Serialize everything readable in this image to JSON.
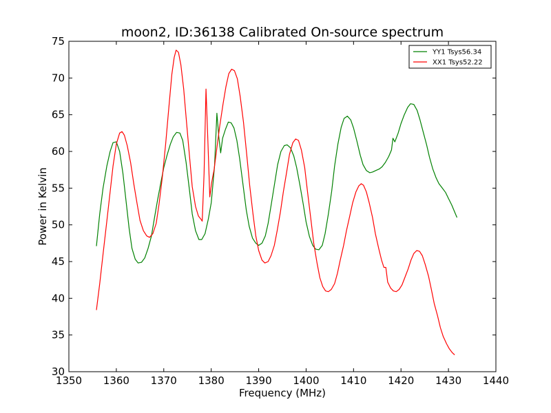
{
  "chart_data": {
    "type": "line",
    "title": "moon2, ID:36138 Calibrated On-source spectrum",
    "xlabel": "Frequency (MHz)",
    "ylabel": "Power in Kelvin",
    "xlim": [
      1350,
      1440
    ],
    "ylim": [
      30,
      75
    ],
    "xticks": [
      "1350",
      "1360",
      "1370",
      "1380",
      "1390",
      "1400",
      "1410",
      "1420",
      "1430",
      "1440"
    ],
    "yticks": [
      "30",
      "35",
      "40",
      "45",
      "50",
      "55",
      "60",
      "65",
      "70",
      "75"
    ],
    "grid": false,
    "legend_position": "top-right",
    "series": [
      {
        "name": "YY1 Tsys56.34",
        "color": "#008000",
        "points": [
          [
            1355.8,
            47.1
          ],
          [
            1356.5,
            51.5
          ],
          [
            1357.2,
            55.0
          ],
          [
            1358.0,
            58.0
          ],
          [
            1358.7,
            60.0
          ],
          [
            1359.3,
            61.2
          ],
          [
            1360.0,
            61.3
          ],
          [
            1360.7,
            60.0
          ],
          [
            1361.4,
            57.0
          ],
          [
            1362.0,
            53.5
          ],
          [
            1362.7,
            49.5
          ],
          [
            1363.3,
            46.8
          ],
          [
            1364.0,
            45.3
          ],
          [
            1364.6,
            44.8
          ],
          [
            1365.3,
            44.9
          ],
          [
            1366.0,
            45.5
          ],
          [
            1366.7,
            46.8
          ],
          [
            1367.4,
            48.5
          ],
          [
            1368.0,
            50.8
          ],
          [
            1368.7,
            53.4
          ],
          [
            1369.4,
            55.8
          ],
          [
            1370.0,
            57.8
          ],
          [
            1370.7,
            59.5
          ],
          [
            1371.4,
            61.0
          ],
          [
            1372.0,
            62.0
          ],
          [
            1372.7,
            62.6
          ],
          [
            1373.4,
            62.5
          ],
          [
            1374.0,
            61.5
          ],
          [
            1374.7,
            58.5
          ],
          [
            1375.4,
            54.8
          ],
          [
            1376.0,
            51.5
          ],
          [
            1376.7,
            49.2
          ],
          [
            1377.4,
            48.0
          ],
          [
            1378.0,
            48.0
          ],
          [
            1378.7,
            48.8
          ],
          [
            1379.4,
            50.8
          ],
          [
            1380.0,
            53.0
          ],
          [
            1380.7,
            58.0
          ],
          [
            1381.2,
            65.2
          ],
          [
            1381.6,
            62.0
          ],
          [
            1382.0,
            59.8
          ],
          [
            1382.4,
            61.8
          ],
          [
            1383.0,
            63.0
          ],
          [
            1383.6,
            64.0
          ],
          [
            1384.2,
            63.9
          ],
          [
            1384.8,
            63.2
          ],
          [
            1385.4,
            61.5
          ],
          [
            1386.0,
            59.0
          ],
          [
            1386.7,
            55.5
          ],
          [
            1387.4,
            52.0
          ],
          [
            1388.0,
            49.8
          ],
          [
            1388.7,
            48.2
          ],
          [
            1389.4,
            47.5
          ],
          [
            1390.0,
            47.2
          ],
          [
            1390.7,
            47.5
          ],
          [
            1391.4,
            48.5
          ],
          [
            1392.0,
            50.2
          ],
          [
            1392.7,
            53.0
          ],
          [
            1393.4,
            55.8
          ],
          [
            1394.0,
            58.2
          ],
          [
            1394.7,
            60.0
          ],
          [
            1395.4,
            60.8
          ],
          [
            1396.0,
            60.9
          ],
          [
            1396.7,
            60.5
          ],
          [
            1397.4,
            59.4
          ],
          [
            1398.0,
            57.8
          ],
          [
            1398.7,
            55.4
          ],
          [
            1399.4,
            52.8
          ],
          [
            1400.0,
            50.4
          ],
          [
            1400.7,
            48.4
          ],
          [
            1401.4,
            47.2
          ],
          [
            1402.0,
            46.7
          ],
          [
            1402.7,
            46.6
          ],
          [
            1403.4,
            47.2
          ],
          [
            1404.0,
            48.8
          ],
          [
            1404.7,
            51.5
          ],
          [
            1405.4,
            54.6
          ],
          [
            1406.0,
            58.0
          ],
          [
            1406.7,
            61.0
          ],
          [
            1407.4,
            63.3
          ],
          [
            1408.0,
            64.5
          ],
          [
            1408.7,
            64.8
          ],
          [
            1409.4,
            64.3
          ],
          [
            1410.0,
            63.2
          ],
          [
            1410.7,
            61.4
          ],
          [
            1411.4,
            59.5
          ],
          [
            1412.0,
            58.2
          ],
          [
            1412.7,
            57.4
          ],
          [
            1413.4,
            57.1
          ],
          [
            1414.0,
            57.2
          ],
          [
            1414.7,
            57.4
          ],
          [
            1415.4,
            57.6
          ],
          [
            1416.0,
            57.9
          ],
          [
            1416.7,
            58.5
          ],
          [
            1417.4,
            59.3
          ],
          [
            1418.0,
            60.2
          ],
          [
            1418.3,
            61.8
          ],
          [
            1418.7,
            61.3
          ],
          [
            1419.4,
            62.5
          ],
          [
            1420.0,
            63.8
          ],
          [
            1420.7,
            65.0
          ],
          [
            1421.4,
            66.0
          ],
          [
            1422.0,
            66.5
          ],
          [
            1422.7,
            66.4
          ],
          [
            1423.4,
            65.6
          ],
          [
            1424.0,
            64.3
          ],
          [
            1424.7,
            62.6
          ],
          [
            1425.4,
            60.9
          ],
          [
            1426.0,
            59.2
          ],
          [
            1426.7,
            57.6
          ],
          [
            1427.4,
            56.4
          ],
          [
            1428.0,
            55.6
          ],
          [
            1428.7,
            55.0
          ],
          [
            1429.4,
            54.4
          ],
          [
            1430.0,
            53.6
          ],
          [
            1430.7,
            52.7
          ],
          [
            1431.4,
            51.6
          ],
          [
            1431.8,
            51.0
          ]
        ]
      },
      {
        "name": "XX1 Tsys52.22",
        "color": "#ff0000",
        "points": [
          [
            1355.8,
            38.4
          ],
          [
            1356.5,
            42.0
          ],
          [
            1357.2,
            46.0
          ],
          [
            1358.0,
            50.5
          ],
          [
            1358.7,
            54.5
          ],
          [
            1359.3,
            58.0
          ],
          [
            1360.0,
            61.0
          ],
          [
            1360.7,
            62.5
          ],
          [
            1361.2,
            62.7
          ],
          [
            1361.7,
            62.2
          ],
          [
            1362.3,
            60.8
          ],
          [
            1363.0,
            58.5
          ],
          [
            1363.7,
            55.5
          ],
          [
            1364.4,
            52.8
          ],
          [
            1365.0,
            50.6
          ],
          [
            1365.7,
            49.2
          ],
          [
            1366.4,
            48.5
          ],
          [
            1367.0,
            48.3
          ],
          [
            1367.7,
            48.8
          ],
          [
            1368.4,
            50.2
          ],
          [
            1369.0,
            52.8
          ],
          [
            1369.7,
            56.5
          ],
          [
            1370.4,
            61.0
          ],
          [
            1371.0,
            65.5
          ],
          [
            1371.7,
            70.5
          ],
          [
            1372.2,
            72.8
          ],
          [
            1372.6,
            73.8
          ],
          [
            1373.1,
            73.5
          ],
          [
            1373.6,
            71.8
          ],
          [
            1374.2,
            68.5
          ],
          [
            1374.8,
            64.0
          ],
          [
            1375.4,
            59.5
          ],
          [
            1376.0,
            55.2
          ],
          [
            1376.7,
            52.5
          ],
          [
            1377.3,
            51.2
          ],
          [
            1377.8,
            50.8
          ],
          [
            1378.1,
            50.5
          ],
          [
            1378.5,
            57.0
          ],
          [
            1378.9,
            68.5
          ],
          [
            1379.3,
            61.5
          ],
          [
            1379.7,
            53.8
          ],
          [
            1380.1,
            55.8
          ],
          [
            1380.6,
            57.5
          ],
          [
            1381.2,
            60.5
          ],
          [
            1381.8,
            63.5
          ],
          [
            1382.5,
            66.5
          ],
          [
            1383.1,
            68.8
          ],
          [
            1383.7,
            70.6
          ],
          [
            1384.3,
            71.2
          ],
          [
            1384.9,
            71.0
          ],
          [
            1385.5,
            69.9
          ],
          [
            1386.1,
            67.5
          ],
          [
            1386.8,
            64.0
          ],
          [
            1387.5,
            59.5
          ],
          [
            1388.1,
            55.4
          ],
          [
            1388.8,
            51.5
          ],
          [
            1389.4,
            48.5
          ],
          [
            1390.0,
            46.5
          ],
          [
            1390.7,
            45.2
          ],
          [
            1391.3,
            44.8
          ],
          [
            1392.0,
            45.0
          ],
          [
            1392.6,
            45.8
          ],
          [
            1393.3,
            47.2
          ],
          [
            1393.9,
            49.2
          ],
          [
            1394.6,
            51.8
          ],
          [
            1395.2,
            54.5
          ],
          [
            1395.9,
            57.2
          ],
          [
            1396.5,
            59.6
          ],
          [
            1397.2,
            61.2
          ],
          [
            1397.8,
            61.7
          ],
          [
            1398.4,
            61.5
          ],
          [
            1399.0,
            60.2
          ],
          [
            1399.7,
            57.8
          ],
          [
            1400.3,
            54.5
          ],
          [
            1401.0,
            50.8
          ],
          [
            1401.6,
            47.5
          ],
          [
            1402.3,
            44.8
          ],
          [
            1402.9,
            42.8
          ],
          [
            1403.5,
            41.6
          ],
          [
            1404.1,
            41.0
          ],
          [
            1404.7,
            40.9
          ],
          [
            1405.3,
            41.2
          ],
          [
            1406.0,
            42.0
          ],
          [
            1406.6,
            43.4
          ],
          [
            1407.2,
            45.2
          ],
          [
            1407.9,
            47.2
          ],
          [
            1408.5,
            49.2
          ],
          [
            1409.2,
            51.2
          ],
          [
            1409.8,
            53.0
          ],
          [
            1410.5,
            54.5
          ],
          [
            1411.1,
            55.3
          ],
          [
            1411.6,
            55.6
          ],
          [
            1412.1,
            55.4
          ],
          [
            1412.7,
            54.5
          ],
          [
            1413.3,
            53.0
          ],
          [
            1414.0,
            51.0
          ],
          [
            1414.6,
            48.8
          ],
          [
            1415.3,
            46.8
          ],
          [
            1415.9,
            45.2
          ],
          [
            1416.4,
            44.2
          ],
          [
            1416.8,
            44.2
          ],
          [
            1417.2,
            42.2
          ],
          [
            1417.8,
            41.4
          ],
          [
            1418.4,
            41.0
          ],
          [
            1419.0,
            40.9
          ],
          [
            1419.6,
            41.2
          ],
          [
            1420.2,
            41.8
          ],
          [
            1420.8,
            42.8
          ],
          [
            1421.5,
            44.0
          ],
          [
            1422.1,
            45.2
          ],
          [
            1422.7,
            46.1
          ],
          [
            1423.3,
            46.5
          ],
          [
            1423.9,
            46.4
          ],
          [
            1424.5,
            45.8
          ],
          [
            1425.1,
            44.6
          ],
          [
            1425.8,
            43.0
          ],
          [
            1426.4,
            41.2
          ],
          [
            1427.0,
            39.3
          ],
          [
            1427.7,
            37.6
          ],
          [
            1428.3,
            36.0
          ],
          [
            1428.9,
            34.8
          ],
          [
            1429.6,
            33.8
          ],
          [
            1430.2,
            33.1
          ],
          [
            1430.8,
            32.6
          ],
          [
            1431.3,
            32.3
          ]
        ]
      }
    ]
  }
}
